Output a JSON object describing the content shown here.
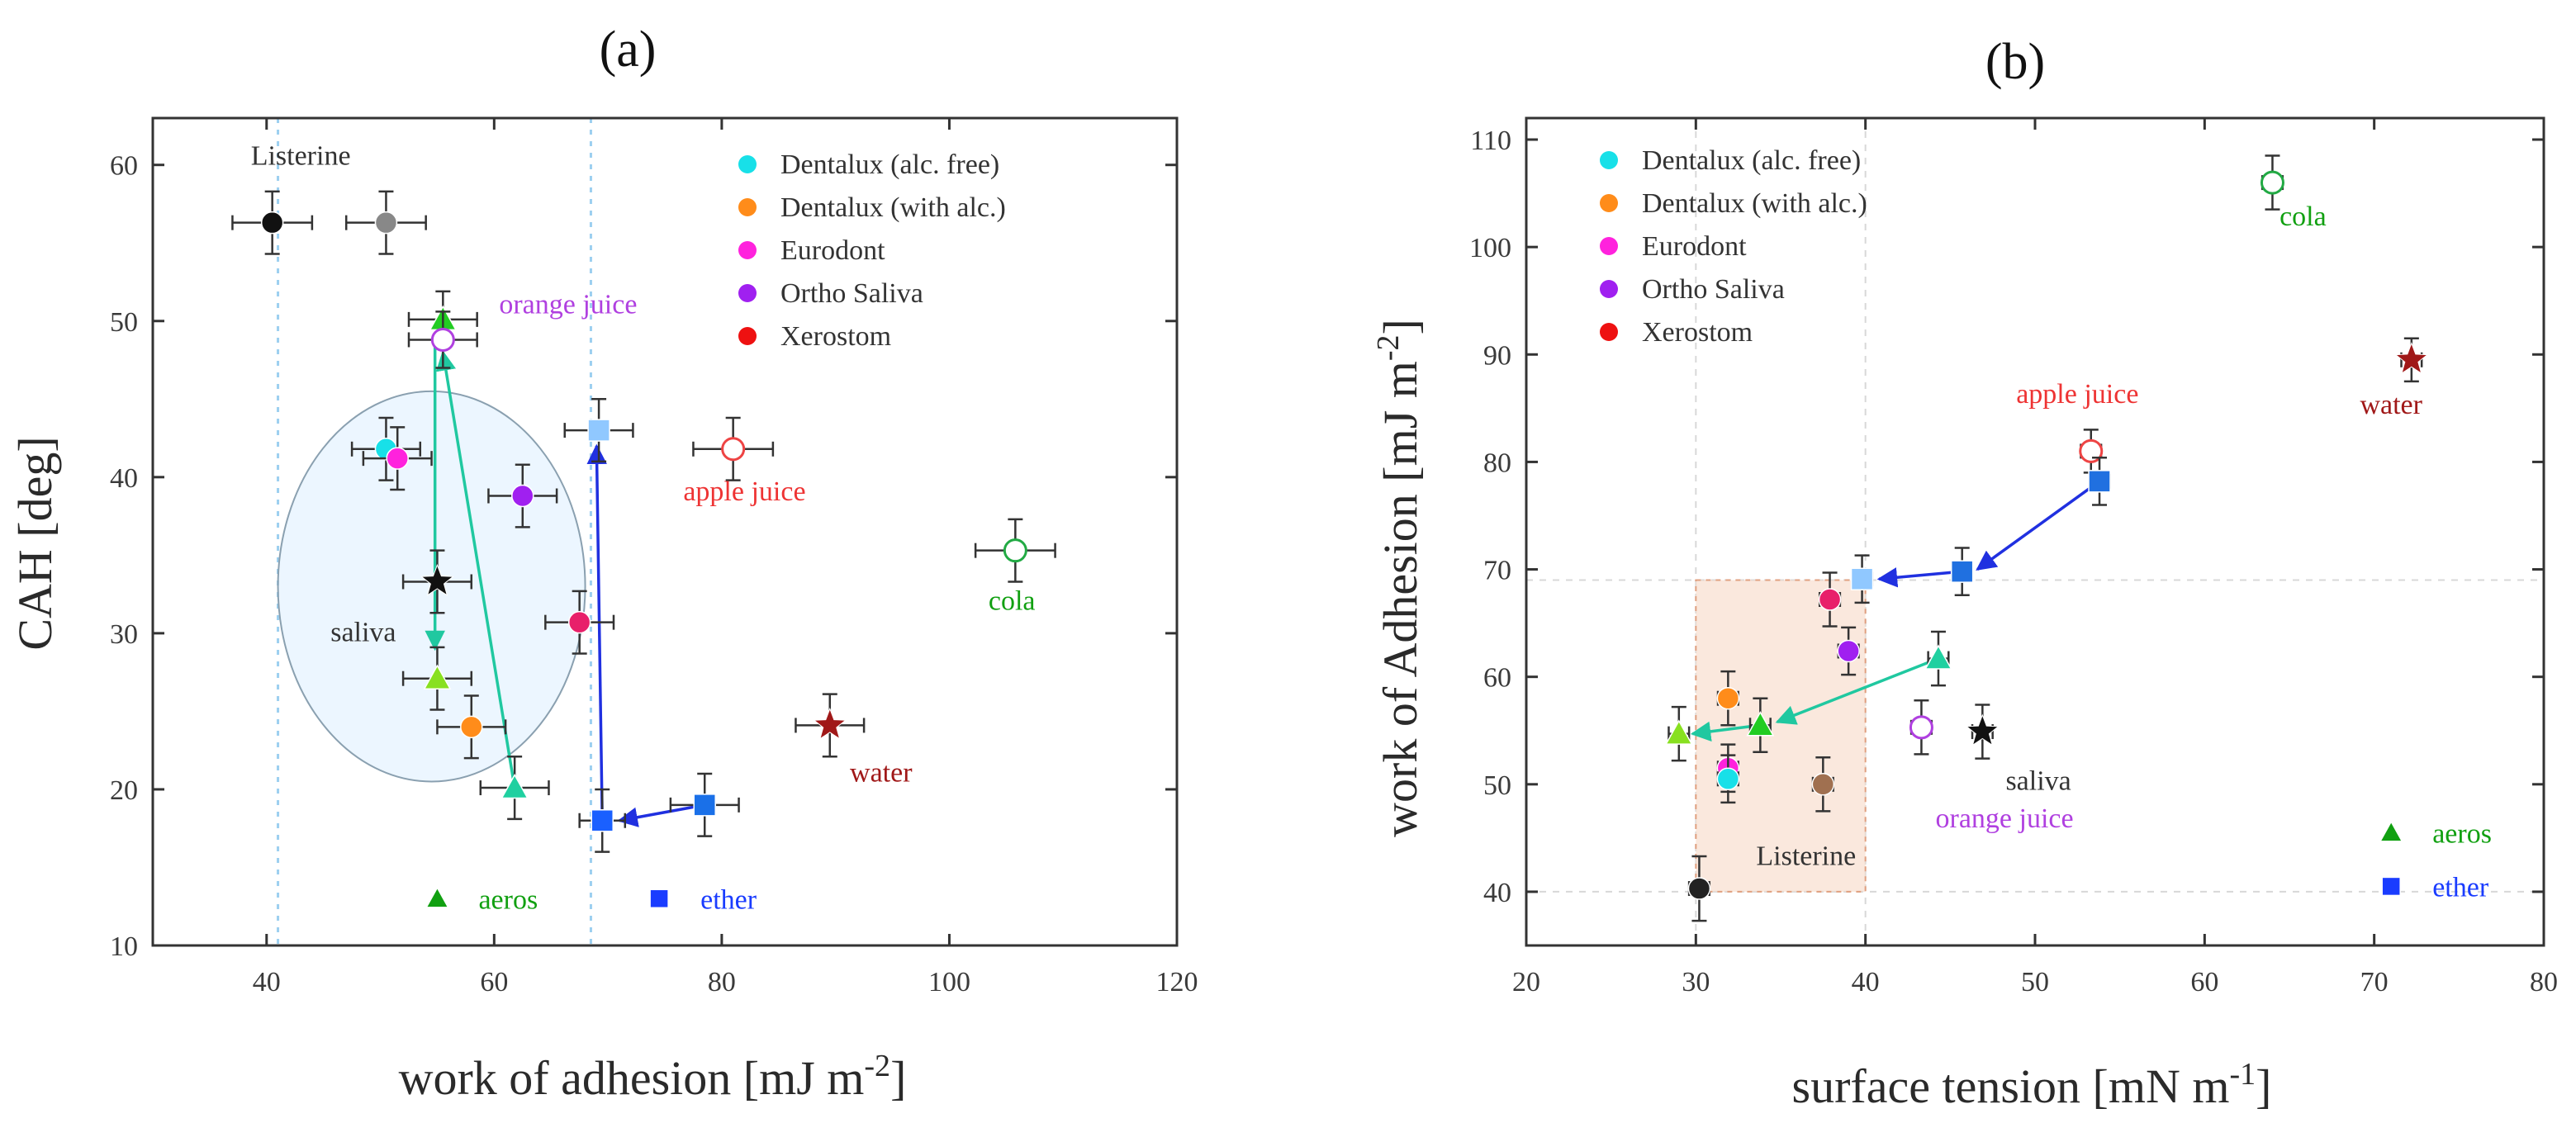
{
  "chart_data": [
    {
      "panel_label": "(a)",
      "type": "scatter",
      "xlabel": "work of adhesion [mJ m",
      "xlabel_sup": "-2",
      "xlabel_end": "]",
      "ylabel": "CAH [deg]",
      "xlim": [
        30,
        120
      ],
      "ylim": [
        10,
        63
      ],
      "xticks": [
        40,
        60,
        80,
        100,
        120
      ],
      "yticks": [
        10,
        20,
        30,
        40,
        50,
        60
      ],
      "vlines": [
        41,
        68.5
      ],
      "legend": [
        {
          "label": "Dentalux (alc. free)",
          "color": "#18e0e8"
        },
        {
          "label": "Dentalux (with alc.)",
          "color": "#ff8c1a"
        },
        {
          "label": "Eurodont",
          "color": "#ff22dd"
        },
        {
          "label": "Ortho Saliva",
          "color": "#a020f0"
        },
        {
          "label": "Xerostom",
          "color": "#ee1111"
        }
      ],
      "legend_markers": [
        {
          "label": "aeros",
          "marker": "triangle",
          "color": "#11a011",
          "x": 55,
          "y": 13
        },
        {
          "label": "ether",
          "marker": "square",
          "color": "#1a3cff",
          "x": 74.5,
          "y": 13
        }
      ],
      "points": [
        {
          "x": 40.5,
          "y": 56.3,
          "xerr": 3.5,
          "yerr": 2,
          "marker": "circle",
          "color": "#111111"
        },
        {
          "x": 50.5,
          "y": 56.3,
          "xerr": 3.5,
          "yerr": 2,
          "marker": "circle",
          "color": "#888888"
        },
        {
          "x": 55.5,
          "y": 50.1,
          "xerr": 3,
          "yerr": 1.8,
          "marker": "triangle",
          "color": "#22cc22"
        },
        {
          "x": 55.5,
          "y": 48.8,
          "xerr": 3,
          "yerr": 1.8,
          "marker": "circle-open",
          "color": "#b040e0"
        },
        {
          "x": 50.5,
          "y": 41.8,
          "xerr": 3,
          "yerr": 2,
          "marker": "circle",
          "color": "#18e0e8"
        },
        {
          "x": 51.5,
          "y": 41.2,
          "xerr": 3,
          "yerr": 2,
          "marker": "circle",
          "color": "#ff22dd"
        },
        {
          "x": 62.5,
          "y": 38.8,
          "xerr": 3,
          "yerr": 2,
          "marker": "circle",
          "color": "#a020f0"
        },
        {
          "x": 69.2,
          "y": 43,
          "xerr": 3,
          "yerr": 2,
          "marker": "square",
          "color": "#90c8ff"
        },
        {
          "x": 81,
          "y": 41.8,
          "xerr": 3.5,
          "yerr": 2,
          "marker": "circle-open",
          "color": "#ee4444"
        },
        {
          "x": 105.8,
          "y": 35.3,
          "xerr": 3.5,
          "yerr": 2,
          "marker": "circle-open",
          "color": "#22aa44"
        },
        {
          "x": 55,
          "y": 33.3,
          "xerr": 3,
          "yerr": 2,
          "marker": "star",
          "color": "#111111"
        },
        {
          "x": 67.5,
          "y": 30.7,
          "xerr": 3,
          "yerr": 2,
          "marker": "circle",
          "color": "#e8206a"
        },
        {
          "x": 55,
          "y": 27.1,
          "xerr": 3,
          "yerr": 2,
          "marker": "triangle",
          "color": "#88e020"
        },
        {
          "x": 58,
          "y": 24,
          "xerr": 3,
          "yerr": 2,
          "marker": "circle",
          "color": "#ff8c1a"
        },
        {
          "x": 89.5,
          "y": 24.1,
          "xerr": 3,
          "yerr": 2,
          "marker": "star",
          "color": "#a01818"
        },
        {
          "x": 61.8,
          "y": 20.1,
          "xerr": 3,
          "yerr": 2,
          "marker": "triangle",
          "color": "#20d0a0"
        },
        {
          "x": 69.5,
          "y": 18,
          "xerr": 2,
          "yerr": 2,
          "marker": "square",
          "color": "#1a60ff"
        },
        {
          "x": 78.5,
          "y": 19,
          "xerr": 3,
          "yerr": 2,
          "marker": "square",
          "color": "#1a70e8"
        }
      ],
      "arrows": [
        {
          "from": [
            61.8,
            20.1
          ],
          "to": [
            55.5,
            48
          ],
          "color": "#20c8a0"
        },
        {
          "from": [
            54.8,
            48.5
          ],
          "to": [
            54.8,
            29
          ],
          "color": "#20c8a0"
        },
        {
          "from": [
            69.5,
            18
          ],
          "to": [
            69,
            42
          ],
          "color": "#2030e0"
        },
        {
          "from": [
            78.5,
            19
          ],
          "to": [
            71,
            18
          ],
          "color": "#2030e0"
        }
      ],
      "ellipse": {
        "cx": 54.5,
        "cy": 33,
        "rx": 13.5,
        "ry": 12.5
      },
      "annotations": [
        {
          "text": "Listerine",
          "x": 43,
          "y": 60,
          "color": "#333333"
        },
        {
          "text": "orange juice",
          "x": 66.5,
          "y": 50.5,
          "color": "#b040e0"
        },
        {
          "text": "apple juice",
          "x": 82,
          "y": 38.5,
          "color": "#ee3333"
        },
        {
          "text": "saliva",
          "x": 48.5,
          "y": 29.5,
          "color": "#333333"
        },
        {
          "text": "cola",
          "x": 105.5,
          "y": 31.5,
          "color": "#11a011"
        },
        {
          "text": "water",
          "x": 94,
          "y": 20.5,
          "color": "#a01818"
        }
      ]
    },
    {
      "panel_label": "(b)",
      "type": "scatter",
      "xlabel": "surface tension [mN m",
      "xlabel_sup": "-1",
      "xlabel_end": "]",
      "ylabel": "work of Adhesion [mJ m",
      "ylabel_sup": "-2",
      "ylabel_end": "]",
      "xlim": [
        20,
        80
      ],
      "ylim": [
        35,
        112
      ],
      "xticks": [
        20,
        30,
        40,
        50,
        60,
        70,
        80
      ],
      "yticks": [
        40,
        50,
        60,
        70,
        80,
        90,
        100,
        110
      ],
      "legend": [
        {
          "label": "Dentalux (alc. free)",
          "color": "#18e0e8"
        },
        {
          "label": "Dentalux (with alc.)",
          "color": "#ff8c1a"
        },
        {
          "label": "Eurodont",
          "color": "#ff22dd"
        },
        {
          "label": "Ortho Saliva",
          "color": "#a020f0"
        },
        {
          "label": "Xerostom",
          "color": "#ee1111"
        }
      ],
      "legend_markers": [
        {
          "label": "aeros",
          "marker": "triangle",
          "color": "#11a011",
          "x": 71,
          "y": 45.5
        },
        {
          "label": "ether",
          "marker": "square",
          "color": "#1a3cff",
          "x": 71,
          "y": 40.5
        }
      ],
      "region": {
        "x": [
          30,
          40
        ],
        "y": [
          40,
          69
        ]
      },
      "points": [
        {
          "x": 64,
          "y": 106,
          "xerr": 0.6,
          "yerr": 2.5,
          "marker": "circle-open",
          "color": "#22aa44"
        },
        {
          "x": 72.2,
          "y": 89.5,
          "xerr": 0.6,
          "yerr": 2,
          "marker": "star",
          "color": "#a01818"
        },
        {
          "x": 53.3,
          "y": 81,
          "xerr": 0.6,
          "yerr": 2,
          "marker": "circle-open",
          "color": "#ee4444"
        },
        {
          "x": 53.8,
          "y": 78.2,
          "xerr": 0.6,
          "yerr": 2.2,
          "marker": "square",
          "color": "#2070e0"
        },
        {
          "x": 45.7,
          "y": 69.8,
          "xerr": 0.6,
          "yerr": 2.2,
          "marker": "square",
          "color": "#2070e0"
        },
        {
          "x": 39.8,
          "y": 69.1,
          "xerr": 0.6,
          "yerr": 2.2,
          "marker": "square",
          "color": "#90c8ff"
        },
        {
          "x": 37.9,
          "y": 67.2,
          "xerr": 0.6,
          "yerr": 2.5,
          "marker": "circle",
          "color": "#e8206a"
        },
        {
          "x": 39,
          "y": 62.4,
          "xerr": 0.6,
          "yerr": 2.2,
          "marker": "circle",
          "color": "#a020f0"
        },
        {
          "x": 44.3,
          "y": 61.7,
          "xerr": 0.6,
          "yerr": 2.5,
          "marker": "triangle",
          "color": "#20d0a0"
        },
        {
          "x": 31.9,
          "y": 58,
          "xerr": 0.6,
          "yerr": 2.5,
          "marker": "circle",
          "color": "#ff8c1a"
        },
        {
          "x": 33.8,
          "y": 55.5,
          "xerr": 0.6,
          "yerr": 2.5,
          "marker": "triangle",
          "color": "#22cc22"
        },
        {
          "x": 29,
          "y": 54.7,
          "xerr": 0.6,
          "yerr": 2.5,
          "marker": "triangle",
          "color": "#88e020"
        },
        {
          "x": 43.3,
          "y": 55.3,
          "xerr": 0.6,
          "yerr": 2.5,
          "marker": "circle-open",
          "color": "#b040e0"
        },
        {
          "x": 46.9,
          "y": 54.9,
          "xerr": 0.6,
          "yerr": 2.5,
          "marker": "star",
          "color": "#111111"
        },
        {
          "x": 31.9,
          "y": 51.5,
          "xerr": 0.6,
          "yerr": 2.2,
          "marker": "circle",
          "color": "#ff22dd"
        },
        {
          "x": 31.9,
          "y": 50.5,
          "xerr": 0.6,
          "yerr": 2.2,
          "marker": "circle",
          "color": "#18e0e8"
        },
        {
          "x": 37.5,
          "y": 50,
          "xerr": 0.6,
          "yerr": 2.5,
          "marker": "circle",
          "color": "#a07050"
        },
        {
          "x": 30.2,
          "y": 40.3,
          "xerr": 0.6,
          "yerr": 3,
          "marker": "circle",
          "color": "#222222"
        }
      ],
      "arrows": [
        {
          "from": [
            53.8,
            78.2
          ],
          "to": [
            46.6,
            70
          ],
          "color": "#2030e0"
        },
        {
          "from": [
            45.7,
            69.8
          ],
          "to": [
            40.8,
            69.1
          ],
          "color": "#2030e0"
        },
        {
          "from": [
            44.3,
            61.7
          ],
          "to": [
            34.8,
            55.8
          ],
          "color": "#20c8a0"
        },
        {
          "from": [
            33.8,
            55.5
          ],
          "to": [
            29.8,
            54.7
          ],
          "color": "#20c8a0"
        }
      ],
      "annotations": [
        {
          "text": "cola",
          "x": 65.8,
          "y": 102,
          "color": "#11a011"
        },
        {
          "text": "apple juice",
          "x": 52.5,
          "y": 85.5,
          "color": "#ee3333"
        },
        {
          "text": "water",
          "x": 71,
          "y": 84.5,
          "color": "#a01818"
        },
        {
          "text": "saliva",
          "x": 50.2,
          "y": 49.5,
          "color": "#333333"
        },
        {
          "text": "orange juice",
          "x": 48.2,
          "y": 46,
          "color": "#b040e0"
        },
        {
          "text": "Listerine",
          "x": 36.5,
          "y": 42.5,
          "color": "#333333"
        }
      ]
    }
  ]
}
